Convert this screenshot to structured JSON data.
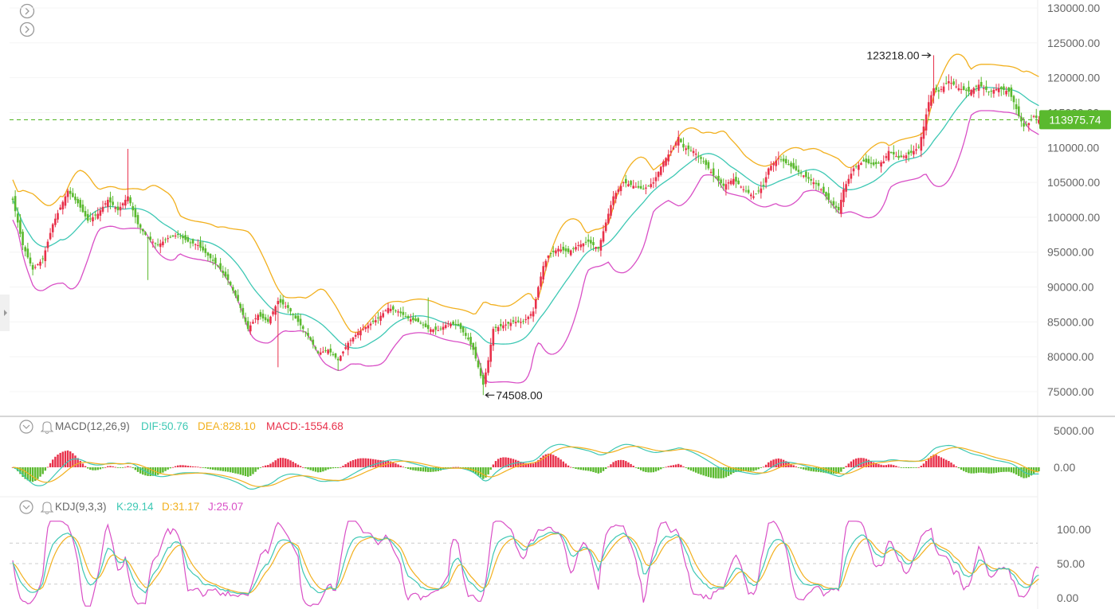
{
  "colors": {
    "up": "#e8304a",
    "down": "#5ab92e",
    "boll_upper": "#f2b01e",
    "boll_mid": "#3dc8b4",
    "boll_lower": "#d94fc6",
    "price_tag_bg": "#5ab92e",
    "kdj_k": "#3dc8b4",
    "kdj_d": "#f2b01e",
    "kdj_j": "#d94fc6",
    "grid": "#e8e8e8",
    "axis_text": "#666666"
  },
  "price_axis": {
    "ticks": [
      "130000.00",
      "125000.00",
      "120000.00",
      "115000.00",
      "110000.00",
      "105000.00",
      "100000.00",
      "95000.00",
      "90000.00",
      "85000.00",
      "80000.00",
      "75000.00"
    ]
  },
  "current_price": "113975.74",
  "annotations": {
    "high": "123218.00",
    "low": "74508.00"
  },
  "macd": {
    "title": "MACD(12,26,9)",
    "dif": "DIF:50.76",
    "dea": "DEA:828.10",
    "macd": "MACD:-1554.68",
    "ticks": [
      "5000.00",
      "0.00"
    ]
  },
  "kdj": {
    "title": "KDJ(9,3,3)",
    "k": "K:29.14",
    "d": "D:31.17",
    "j": "J:25.07",
    "ticks": [
      "100.00",
      "50.00",
      "0.00"
    ]
  },
  "icons": [
    "chevron-right-circle-icon",
    "chevron-right-circle-icon",
    "collapse-toggle-icon",
    "bell-icon"
  ],
  "chart_data": [
    {
      "type": "candlestick",
      "title": "",
      "ylim": [
        72000,
        131000
      ],
      "indicators": [
        "BOLL upper",
        "BOLL mid",
        "BOLL lower"
      ],
      "anchors": [
        [
          0,
          102500
        ],
        [
          4,
          96000
        ],
        [
          8,
          92500
        ],
        [
          12,
          94000
        ],
        [
          16,
          99000
        ],
        [
          22,
          103800
        ],
        [
          26,
          102000
        ],
        [
          30,
          99500
        ],
        [
          34,
          100500
        ],
        [
          38,
          102500
        ],
        [
          42,
          101000
        ],
        [
          46,
          103000
        ],
        [
          50,
          99000
        ],
        [
          54,
          97000
        ],
        [
          58,
          96000
        ],
        [
          62,
          97000
        ],
        [
          66,
          97500
        ],
        [
          70,
          96500
        ],
        [
          74,
          96000
        ],
        [
          78,
          94500
        ],
        [
          82,
          93000
        ],
        [
          86,
          91000
        ],
        [
          90,
          88000
        ],
        [
          94,
          84000
        ],
        [
          98,
          86000
        ],
        [
          102,
          85000
        ],
        [
          106,
          88000
        ],
        [
          110,
          87000
        ],
        [
          114,
          85000
        ],
        [
          118,
          83000
        ],
        [
          122,
          80500
        ],
        [
          126,
          81000
        ],
        [
          130,
          79500
        ],
        [
          134,
          82000
        ],
        [
          138,
          83500
        ],
        [
          142,
          84500
        ],
        [
          146,
          85500
        ],
        [
          150,
          87000
        ],
        [
          154,
          86500
        ],
        [
          158,
          85500
        ],
        [
          162,
          85000
        ],
        [
          166,
          84000
        ],
        [
          170,
          83800
        ],
        [
          174,
          84800
        ],
        [
          178,
          84500
        ],
        [
          182,
          82500
        ],
        [
          184,
          81000
        ],
        [
          186,
          78500
        ],
        [
          188,
          76000
        ],
        [
          190,
          79500
        ],
        [
          192,
          84000
        ],
        [
          196,
          84500
        ],
        [
          200,
          85000
        ],
        [
          204,
          85000
        ],
        [
          208,
          86500
        ],
        [
          210,
          90000
        ],
        [
          212,
          93000
        ],
        [
          214,
          94500
        ],
        [
          218,
          95500
        ],
        [
          222,
          95000
        ],
        [
          226,
          96000
        ],
        [
          230,
          96500
        ],
        [
          234,
          95500
        ],
        [
          236,
          98000
        ],
        [
          240,
          103000
        ],
        [
          244,
          105000
        ],
        [
          248,
          104500
        ],
        [
          252,
          104000
        ],
        [
          256,
          105000
        ],
        [
          260,
          108000
        ],
        [
          264,
          110000
        ],
        [
          266,
          111500
        ],
        [
          268,
          110000
        ],
        [
          272,
          109500
        ],
        [
          276,
          108000
        ],
        [
          280,
          106000
        ],
        [
          284,
          104500
        ],
        [
          288,
          105500
        ],
        [
          292,
          104000
        ],
        [
          296,
          103000
        ],
        [
          300,
          104500
        ],
        [
          302,
          107000
        ],
        [
          306,
          108500
        ],
        [
          310,
          107500
        ],
        [
          314,
          106500
        ],
        [
          318,
          105500
        ],
        [
          322,
          104500
        ],
        [
          326,
          102500
        ],
        [
          330,
          101000
        ],
        [
          332,
          104000
        ],
        [
          336,
          107000
        ],
        [
          340,
          108000
        ],
        [
          344,
          107500
        ],
        [
          348,
          108000
        ],
        [
          350,
          109500
        ],
        [
          354,
          108500
        ],
        [
          358,
          109000
        ],
        [
          362,
          110000
        ],
        [
          364,
          113000
        ],
        [
          366,
          116500
        ],
        [
          368,
          118500
        ],
        [
          370,
          118000
        ],
        [
          374,
          119500
        ],
        [
          378,
          118500
        ],
        [
          382,
          118000
        ],
        [
          386,
          119000
        ],
        [
          390,
          118000
        ],
        [
          394,
          118500
        ],
        [
          398,
          118000
        ],
        [
          400,
          116500
        ],
        [
          402,
          114500
        ],
        [
          404,
          113000
        ],
        [
          406,
          113500
        ],
        [
          408,
          114500
        ],
        [
          410,
          113976
        ]
      ],
      "extremes": {
        "high": 123218,
        "low": 74508
      }
    },
    {
      "type": "bar",
      "title": "MACD(12,26,9)",
      "ylim": [
        -4500,
        6000
      ],
      "series": [
        "DIF",
        "DEA",
        "MACD histogram"
      ],
      "last": {
        "DIF": 50.76,
        "DEA": 828.1,
        "MACD": -1554.68
      }
    },
    {
      "type": "line",
      "title": "KDJ(9,3,3)",
      "ylim": [
        -15,
        115
      ],
      "series": [
        "K",
        "D",
        "J"
      ],
      "last": {
        "K": 29.14,
        "D": 31.17,
        "J": 25.07
      }
    }
  ]
}
